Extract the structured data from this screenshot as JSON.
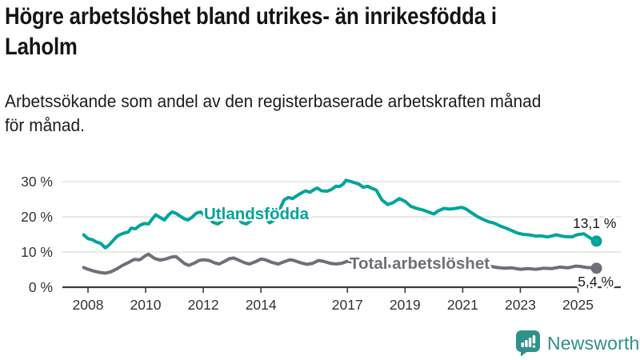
{
  "header": {
    "title": "Högre arbetslöshet bland utrikes- än inrikesfödda i Laholm",
    "title_lines": [
      "Högre arbetslöshet bland utrikes- än inrikesfödda i",
      "Laholm"
    ],
    "subtitle": "Arbetssökande som andel av den registerbaserade arbetskraften månad för månad.",
    "subtitle_lines": [
      "Arbetssökande som andel av den registerbaserade arbetskraften månad",
      "för månad."
    ]
  },
  "branding": {
    "logo_text": "Newsworthy",
    "logo_icon": "bar-chart-speech-bubble-icon",
    "logo_color": "#2f918b"
  },
  "chart_data": {
    "type": "line",
    "title": "Högre arbetslöshet bland utrikes- än inrikesfödda i Laholm",
    "xlabel": "",
    "ylabel": "",
    "x_unit": "year (monthly data)",
    "y_unit": "%",
    "xlim": [
      2007.1,
      2026.5
    ],
    "ylim": [
      0,
      31
    ],
    "grid": true,
    "x_ticks": [
      2008,
      2010,
      2012,
      2014,
      2017,
      2019,
      2021,
      2023,
      2025
    ],
    "x_tick_labels": [
      "2008",
      "2010",
      "2012",
      "2014",
      "2017",
      "2019",
      "2021",
      "2023",
      "2025"
    ],
    "y_ticks": [
      0,
      10,
      20,
      30
    ],
    "y_tick_labels": [
      "0 %",
      "10 %",
      "20 %",
      "30 %"
    ],
    "legend_position": "inline-labels",
    "series": [
      {
        "name": "Utlandsfödda",
        "color": "#00a49a",
        "end_label": "13,1 %",
        "end_value": 13.1,
        "points": [
          [
            2007.85,
            14.9
          ],
          [
            2008.0,
            13.8
          ],
          [
            2008.15,
            13.5
          ],
          [
            2008.28,
            12.9
          ],
          [
            2008.45,
            12.4
          ],
          [
            2008.6,
            11.2
          ],
          [
            2008.72,
            11.9
          ],
          [
            2008.83,
            12.9
          ],
          [
            2009.0,
            14.4
          ],
          [
            2009.1,
            14.9
          ],
          [
            2009.25,
            15.4
          ],
          [
            2009.4,
            15.7
          ],
          [
            2009.5,
            16.8
          ],
          [
            2009.65,
            16.6
          ],
          [
            2009.8,
            17.6
          ],
          [
            2009.95,
            18.1
          ],
          [
            2010.1,
            18.0
          ],
          [
            2010.2,
            19.1
          ],
          [
            2010.35,
            20.6
          ],
          [
            2010.5,
            19.8
          ],
          [
            2010.65,
            19.1
          ],
          [
            2010.8,
            20.6
          ],
          [
            2010.92,
            21.4
          ],
          [
            2011.05,
            21.0
          ],
          [
            2011.2,
            20.2
          ],
          [
            2011.33,
            19.5
          ],
          [
            2011.47,
            19.1
          ],
          [
            2011.6,
            19.8
          ],
          [
            2011.75,
            21.0
          ],
          [
            2011.9,
            21.4
          ],
          [
            2012.0,
            20.7
          ],
          [
            2012.15,
            19.8
          ],
          [
            2012.35,
            18.4
          ],
          [
            2012.5,
            18.0
          ],
          [
            2012.65,
            18.8
          ],
          [
            2012.8,
            19.6
          ],
          [
            2013.0,
            20.6
          ],
          [
            2013.15,
            19.9
          ],
          [
            2013.35,
            18.3
          ],
          [
            2013.5,
            18.0
          ],
          [
            2013.65,
            18.9
          ],
          [
            2013.8,
            19.8
          ],
          [
            2014.0,
            20.9
          ],
          [
            2014.15,
            19.6
          ],
          [
            2014.3,
            18.3
          ],
          [
            2014.45,
            19.0
          ],
          [
            2014.6,
            21.0
          ],
          [
            2014.7,
            23.0
          ],
          [
            2014.8,
            24.8
          ],
          [
            2014.95,
            25.5
          ],
          [
            2015.1,
            25.2
          ],
          [
            2015.3,
            26.3
          ],
          [
            2015.45,
            27.0
          ],
          [
            2015.55,
            27.4
          ],
          [
            2015.7,
            27.0
          ],
          [
            2015.85,
            27.8
          ],
          [
            2015.95,
            28.2
          ],
          [
            2016.1,
            27.4
          ],
          [
            2016.3,
            27.3
          ],
          [
            2016.45,
            27.8
          ],
          [
            2016.6,
            28.7
          ],
          [
            2016.72,
            28.6
          ],
          [
            2016.85,
            29.3
          ],
          [
            2016.95,
            30.4
          ],
          [
            2017.1,
            30.1
          ],
          [
            2017.25,
            29.7
          ],
          [
            2017.4,
            29.3
          ],
          [
            2017.55,
            28.4
          ],
          [
            2017.7,
            28.7
          ],
          [
            2017.85,
            28.1
          ],
          [
            2018.0,
            27.6
          ],
          [
            2018.2,
            24.8
          ],
          [
            2018.4,
            23.5
          ],
          [
            2018.6,
            24.1
          ],
          [
            2018.8,
            25.2
          ],
          [
            2019.0,
            24.4
          ],
          [
            2019.2,
            23.0
          ],
          [
            2019.4,
            22.4
          ],
          [
            2019.6,
            22.0
          ],
          [
            2019.8,
            21.4
          ],
          [
            2020.0,
            20.8
          ],
          [
            2020.15,
            21.7
          ],
          [
            2020.35,
            22.4
          ],
          [
            2020.55,
            22.2
          ],
          [
            2020.75,
            22.4
          ],
          [
            2020.95,
            22.7
          ],
          [
            2021.1,
            22.3
          ],
          [
            2021.3,
            21.2
          ],
          [
            2021.5,
            20.1
          ],
          [
            2021.7,
            19.3
          ],
          [
            2021.9,
            18.6
          ],
          [
            2022.1,
            18.2
          ],
          [
            2022.3,
            17.4
          ],
          [
            2022.5,
            16.8
          ],
          [
            2022.7,
            16.1
          ],
          [
            2022.9,
            15.4
          ],
          [
            2023.1,
            15.0
          ],
          [
            2023.3,
            14.9
          ],
          [
            2023.55,
            14.5
          ],
          [
            2023.7,
            14.6
          ],
          [
            2023.95,
            14.3
          ],
          [
            2024.1,
            14.6
          ],
          [
            2024.25,
            14.9
          ],
          [
            2024.4,
            14.6
          ],
          [
            2024.55,
            14.4
          ],
          [
            2024.8,
            14.3
          ],
          [
            2024.95,
            14.9
          ],
          [
            2025.2,
            15.2
          ],
          [
            2025.35,
            14.4
          ],
          [
            2025.5,
            13.6
          ],
          [
            2025.64,
            13.1
          ]
        ]
      },
      {
        "name": "Total arbetslöshet",
        "color": "#6f6f78",
        "end_label": "5,4 %",
        "end_value": 5.4,
        "points": [
          [
            2007.85,
            5.6
          ],
          [
            2008.0,
            5.1
          ],
          [
            2008.2,
            4.6
          ],
          [
            2008.4,
            4.2
          ],
          [
            2008.6,
            4.0
          ],
          [
            2008.8,
            4.4
          ],
          [
            2009.0,
            5.2
          ],
          [
            2009.2,
            6.2
          ],
          [
            2009.4,
            7.0
          ],
          [
            2009.6,
            7.9
          ],
          [
            2009.8,
            7.8
          ],
          [
            2010.0,
            9.0
          ],
          [
            2010.1,
            9.4
          ],
          [
            2010.3,
            8.2
          ],
          [
            2010.5,
            7.7
          ],
          [
            2010.7,
            8.0
          ],
          [
            2010.9,
            8.6
          ],
          [
            2011.05,
            8.7
          ],
          [
            2011.2,
            7.7
          ],
          [
            2011.35,
            6.7
          ],
          [
            2011.5,
            6.2
          ],
          [
            2011.7,
            6.9
          ],
          [
            2011.85,
            7.6
          ],
          [
            2012.0,
            7.8
          ],
          [
            2012.2,
            7.6
          ],
          [
            2012.4,
            6.9
          ],
          [
            2012.55,
            6.6
          ],
          [
            2012.75,
            7.4
          ],
          [
            2012.9,
            8.1
          ],
          [
            2013.05,
            8.3
          ],
          [
            2013.25,
            7.6
          ],
          [
            2013.45,
            6.9
          ],
          [
            2013.6,
            6.6
          ],
          [
            2013.8,
            7.2
          ],
          [
            2014.0,
            8.0
          ],
          [
            2014.15,
            7.8
          ],
          [
            2014.4,
            7.0
          ],
          [
            2014.6,
            6.6
          ],
          [
            2014.8,
            7.2
          ],
          [
            2015.0,
            7.8
          ],
          [
            2015.15,
            7.6
          ],
          [
            2015.4,
            6.9
          ],
          [
            2015.6,
            6.5
          ],
          [
            2015.8,
            6.8
          ],
          [
            2016.0,
            7.6
          ],
          [
            2016.15,
            7.4
          ],
          [
            2016.4,
            6.8
          ],
          [
            2016.6,
            6.6
          ],
          [
            2016.8,
            6.8
          ],
          [
            2017.0,
            7.4
          ],
          [
            2017.2,
            7.1
          ],
          [
            2017.4,
            6.6
          ],
          [
            2017.6,
            6.3
          ],
          [
            2017.8,
            6.6
          ],
          [
            2018.0,
            7.0
          ],
          [
            2018.2,
            6.7
          ],
          [
            2018.5,
            5.9
          ],
          [
            2018.8,
            6.2
          ],
          [
            2019.0,
            6.5
          ],
          [
            2019.3,
            6.2
          ],
          [
            2019.5,
            6.0
          ],
          [
            2019.8,
            6.3
          ],
          [
            2020.0,
            6.6
          ],
          [
            2020.3,
            7.4
          ],
          [
            2020.5,
            7.6
          ],
          [
            2020.8,
            7.3
          ],
          [
            2021.0,
            7.2
          ],
          [
            2021.3,
            6.6
          ],
          [
            2021.5,
            6.2
          ],
          [
            2021.8,
            5.9
          ],
          [
            2022.0,
            5.9
          ],
          [
            2022.2,
            5.6
          ],
          [
            2022.45,
            5.4
          ],
          [
            2022.7,
            5.5
          ],
          [
            2023.0,
            5.1
          ],
          [
            2023.26,
            5.3
          ],
          [
            2023.54,
            5.1
          ],
          [
            2023.8,
            5.4
          ],
          [
            2024.1,
            5.3
          ],
          [
            2024.37,
            5.7
          ],
          [
            2024.65,
            5.5
          ],
          [
            2024.93,
            6.0
          ],
          [
            2025.1,
            5.9
          ],
          [
            2025.3,
            5.6
          ],
          [
            2025.5,
            5.5
          ],
          [
            2025.64,
            5.4
          ]
        ]
      }
    ]
  }
}
